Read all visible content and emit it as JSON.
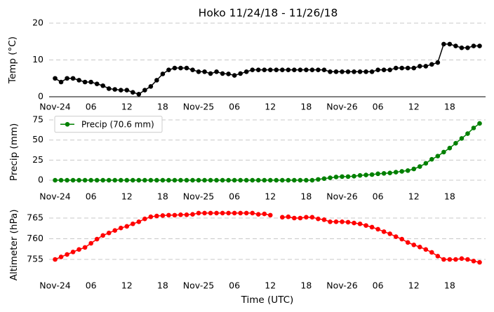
{
  "title": "Hoko 11/24/18 - 11/26/18",
  "chart_data": [
    {
      "type": "line",
      "ylabel": "Temp (°C)",
      "bottom_spine": true,
      "x": [
        0,
        1,
        2,
        3,
        4,
        5,
        6,
        7,
        8,
        9,
        10,
        11,
        12,
        13,
        14,
        15,
        16,
        17,
        18,
        19,
        20,
        21,
        22,
        23,
        24,
        25,
        26,
        27,
        28,
        29,
        30,
        31,
        32,
        33,
        34,
        35,
        36,
        37,
        38,
        39,
        40,
        41,
        42,
        43,
        44,
        45,
        46,
        47,
        48,
        49,
        50,
        51,
        52,
        53,
        54,
        55,
        56,
        57,
        58,
        59,
        60,
        61,
        62,
        63,
        64,
        65,
        66,
        67,
        68,
        69,
        70,
        71
      ],
      "xlim": [
        -1,
        72
      ],
      "xticks": [
        {
          "value": 0,
          "label": "Nov-24"
        },
        {
          "value": 6,
          "label": "06"
        },
        {
          "value": 12,
          "label": "12"
        },
        {
          "value": 18,
          "label": "18"
        },
        {
          "value": 24,
          "label": "Nov-25"
        },
        {
          "value": 30,
          "label": "06"
        },
        {
          "value": 36,
          "label": "12"
        },
        {
          "value": 42,
          "label": "18"
        },
        {
          "value": 48,
          "label": "Nov-26"
        },
        {
          "value": 54,
          "label": "06"
        },
        {
          "value": 60,
          "label": "12"
        },
        {
          "value": 66,
          "label": "18"
        }
      ],
      "ylim": [
        0,
        20
      ],
      "yticks": [
        0,
        10,
        20
      ],
      "grid": true,
      "series": [
        {
          "name": "Temp",
          "color": "#000000",
          "values": [
            5,
            4,
            5,
            5,
            4.5,
            4,
            4,
            3.5,
            3,
            2.2,
            2,
            1.8,
            1.8,
            1.2,
            0.7,
            1.8,
            2.8,
            4.5,
            6.2,
            7.3,
            7.8,
            7.8,
            7.8,
            7.3,
            6.8,
            6.8,
            6.3,
            6.8,
            6.3,
            6.2,
            5.8,
            6.3,
            6.8,
            7.3,
            7.3,
            7.3,
            7.3,
            7.3,
            7.3,
            7.3,
            7.3,
            7.3,
            7.3,
            7.3,
            7.3,
            7.3,
            6.8,
            6.8,
            6.8,
            6.8,
            6.8,
            6.8,
            6.8,
            6.8,
            7.3,
            7.3,
            7.3,
            7.8,
            7.8,
            7.8,
            7.8,
            8.3,
            8.3,
            8.8,
            9.3,
            14.3,
            14.3,
            13.8,
            13.3,
            13.3,
            13.8,
            13.8
          ]
        }
      ]
    },
    {
      "type": "line",
      "ylabel": "Precip (mm)",
      "legend": "upper left",
      "x": [
        0,
        1,
        2,
        3,
        4,
        5,
        6,
        7,
        8,
        9,
        10,
        11,
        12,
        13,
        14,
        15,
        16,
        17,
        18,
        19,
        20,
        21,
        22,
        23,
        24,
        25,
        26,
        27,
        28,
        29,
        30,
        31,
        32,
        33,
        34,
        35,
        36,
        37,
        38,
        39,
        40,
        41,
        42,
        43,
        44,
        45,
        46,
        47,
        48,
        49,
        50,
        51,
        52,
        53,
        54,
        55,
        56,
        57,
        58,
        59,
        60,
        61,
        62,
        63,
        64,
        65,
        66,
        67,
        68,
        69,
        70,
        71
      ],
      "xlim": [
        -1,
        72
      ],
      "xticks": [
        {
          "value": 0,
          "label": "Nov-24"
        },
        {
          "value": 6,
          "label": "06"
        },
        {
          "value": 12,
          "label": "12"
        },
        {
          "value": 18,
          "label": "18"
        },
        {
          "value": 24,
          "label": "Nov-25"
        },
        {
          "value": 30,
          "label": "06"
        },
        {
          "value": 36,
          "label": "12"
        },
        {
          "value": 42,
          "label": "18"
        },
        {
          "value": 48,
          "label": "Nov-26"
        },
        {
          "value": 54,
          "label": "06"
        },
        {
          "value": 60,
          "label": "12"
        },
        {
          "value": 66,
          "label": "18"
        }
      ],
      "ylim": [
        -10,
        80
      ],
      "yticks": [
        0,
        25,
        50,
        75
      ],
      "grid": true,
      "series": [
        {
          "name": "Precip (70.6 mm)",
          "color": "#008000",
          "values": [
            0,
            0,
            0,
            0,
            0,
            0,
            0,
            0,
            0,
            0,
            0,
            0,
            0,
            0,
            0,
            0,
            0,
            0,
            0,
            0,
            0,
            0,
            0,
            0,
            0,
            0,
            0,
            0,
            0,
            0,
            0,
            0,
            0,
            0,
            0,
            0,
            0,
            0,
            0,
            0,
            0,
            0,
            0,
            0,
            1,
            2,
            3,
            4,
            4.5,
            4.5,
            5,
            6,
            6.5,
            7,
            8,
            8.5,
            9,
            10,
            11,
            12,
            14,
            17,
            21,
            26,
            30,
            35,
            40,
            46,
            52,
            58,
            65,
            70.6
          ]
        }
      ]
    },
    {
      "type": "line",
      "ylabel": "Altimeter (hPa)",
      "xlabel": "Time (UTC)",
      "x": [
        0,
        1,
        2,
        3,
        4,
        5,
        6,
        7,
        8,
        9,
        10,
        11,
        12,
        13,
        14,
        15,
        16,
        17,
        18,
        19,
        20,
        21,
        22,
        23,
        24,
        25,
        26,
        27,
        28,
        29,
        30,
        31,
        32,
        33,
        34,
        35,
        36,
        37,
        38,
        39,
        40,
        41,
        42,
        43,
        44,
        45,
        46,
        47,
        48,
        49,
        50,
        51,
        52,
        53,
        54,
        55,
        56,
        57,
        58,
        59,
        60,
        61,
        62,
        63,
        64,
        65,
        66,
        67,
        68,
        69,
        70,
        71
      ],
      "xlim": [
        -1,
        72
      ],
      "xticks": [
        {
          "value": 0,
          "label": "Nov-24"
        },
        {
          "value": 6,
          "label": "06"
        },
        {
          "value": 12,
          "label": "12"
        },
        {
          "value": 18,
          "label": "18"
        },
        {
          "value": 24,
          "label": "Nov-25"
        },
        {
          "value": 30,
          "label": "06"
        },
        {
          "value": 36,
          "label": "12"
        },
        {
          "value": 42,
          "label": "18"
        },
        {
          "value": 48,
          "label": "Nov-26"
        },
        {
          "value": 54,
          "label": "06"
        },
        {
          "value": 60,
          "label": "12"
        },
        {
          "value": 66,
          "label": "18"
        }
      ],
      "ylim": [
        750,
        767
      ],
      "yticks": [
        755,
        760,
        765
      ],
      "grid": true,
      "series": [
        {
          "name": "Altimeter",
          "color": "#ff0000",
          "values": [
            755,
            755.6,
            756.2,
            756.8,
            757.4,
            757.9,
            758.9,
            759.9,
            760.8,
            761.4,
            762,
            762.6,
            763,
            763.6,
            764.1,
            764.8,
            765.3,
            765.5,
            765.6,
            765.7,
            765.7,
            765.8,
            765.8,
            765.9,
            766.2,
            766.2,
            766.2,
            766.2,
            766.2,
            766.2,
            766.2,
            766.2,
            766.2,
            766.2,
            765.9,
            766,
            765.7,
            null,
            765.2,
            765.3,
            765,
            765,
            765.2,
            765.2,
            764.8,
            764.6,
            764.1,
            764.1,
            764.1,
            764,
            763.8,
            763.6,
            763.2,
            762.8,
            762.3,
            761.7,
            761.2,
            760.5,
            759.9,
            759.1,
            758.5,
            758,
            757.4,
            756.7,
            755.8,
            755,
            755,
            755,
            755.2,
            755,
            754.6,
            754.3
          ]
        }
      ]
    }
  ]
}
